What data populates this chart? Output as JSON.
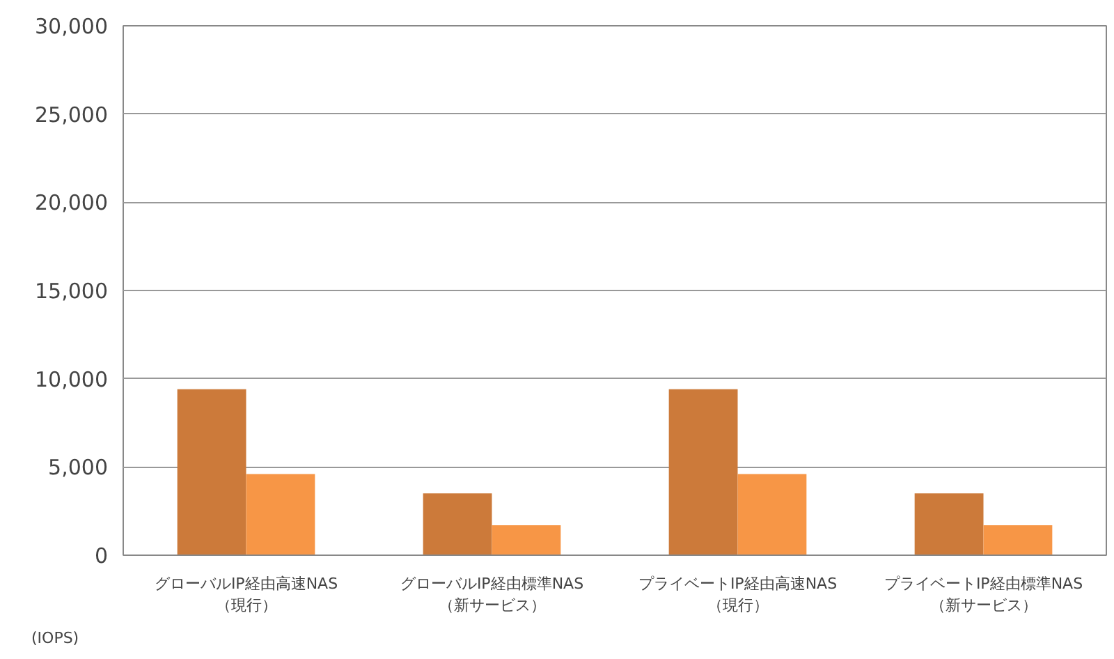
{
  "chart_data": {
    "type": "bar",
    "ylabel": "(IOPS)",
    "categories": [
      "グローバルIP経由高速NAS（現行）",
      "グローバルIP経由標準NAS（新サービス）",
      "プライベートIP経由高速NAS（現行）",
      "プライベートIP経由標準NAS（新サービス）"
    ],
    "series": [
      {
        "color": "#cc7a3a",
        "values": [
          9400,
          3500,
          9400,
          3500
        ]
      },
      {
        "color": "#f79646",
        "values": [
          4600,
          1700,
          4600,
          1700
        ]
      }
    ],
    "ylim": [
      0,
      30000
    ],
    "yticks": [
      {
        "value": 0,
        "label": "0"
      },
      {
        "value": 5000,
        "label": "5,000"
      },
      {
        "value": 10000,
        "label": "10,000"
      },
      {
        "value": 15000,
        "label": "15,000"
      },
      {
        "value": 20000,
        "label": "20,000"
      },
      {
        "value": 25000,
        "label": "25,000"
      },
      {
        "value": 30000,
        "label": "30,000"
      }
    ],
    "grid": "y"
  }
}
